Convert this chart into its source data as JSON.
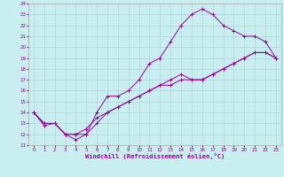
{
  "title": "",
  "xlabel": "Windchill (Refroidissement éolien,°C)",
  "xlim": [
    -0.5,
    23.5
  ],
  "ylim": [
    11,
    24
  ],
  "xticks": [
    0,
    1,
    2,
    3,
    4,
    5,
    6,
    7,
    8,
    9,
    10,
    11,
    12,
    13,
    14,
    15,
    16,
    17,
    18,
    19,
    20,
    21,
    22,
    23
  ],
  "yticks": [
    11,
    12,
    13,
    14,
    15,
    16,
    17,
    18,
    19,
    20,
    21,
    22,
    23,
    24
  ],
  "bg_color": "#c8eef0",
  "grid_color": "#b0d8dc",
  "line_color": "#990099",
  "line1_x": [
    0,
    1,
    2,
    3,
    4,
    5,
    6,
    7,
    8,
    9,
    10,
    11,
    12,
    13,
    14,
    15,
    16,
    17,
    18,
    19,
    20,
    21,
    22,
    23
  ],
  "line1_y": [
    14,
    12.8,
    13,
    12,
    11.5,
    12,
    14,
    15.5,
    15.5,
    16,
    17,
    18.5,
    19,
    20.5,
    22,
    23,
    23.5,
    23,
    22,
    21.5,
    21,
    21,
    20.5,
    19
  ],
  "line2_x": [
    0,
    1,
    2,
    3,
    4,
    5,
    6,
    7,
    8,
    9,
    10,
    11,
    12,
    13,
    14,
    15,
    16,
    17,
    18,
    19,
    20,
    21,
    22,
    23
  ],
  "line2_y": [
    14,
    13,
    13,
    12,
    12,
    12.5,
    13.5,
    14,
    14.5,
    15,
    15.5,
    16,
    16.5,
    17,
    17.5,
    17,
    17,
    17.5,
    18,
    18.5,
    19,
    19.5,
    19.5,
    19
  ],
  "line3_x": [
    0,
    1,
    2,
    3,
    4,
    5,
    6,
    7,
    8,
    9,
    10,
    11,
    12,
    13,
    14,
    15,
    16,
    17,
    18,
    19,
    20,
    21,
    22,
    23
  ],
  "line3_y": [
    14,
    13,
    13,
    12,
    12,
    12,
    13,
    14,
    14.5,
    15,
    15.5,
    16,
    16.5,
    16.5,
    17,
    17,
    17,
    17.5,
    18,
    18.5,
    19,
    19.5,
    19.5,
    19
  ]
}
